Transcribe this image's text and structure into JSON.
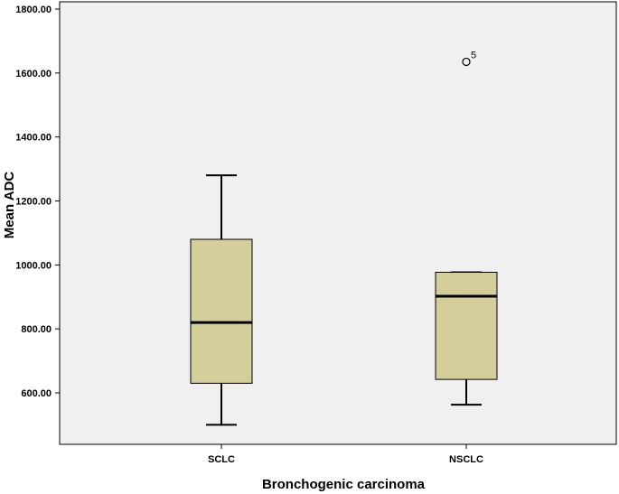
{
  "chart_data": {
    "type": "box",
    "xlabel": "Bronchogenic carcinoma",
    "ylabel": "Mean ADC",
    "ylim": [
      455,
      1830
    ],
    "yticks": [
      "600.00",
      "800.00",
      "1000.00",
      "1200.00",
      "1400.00",
      "1600.00",
      "1800.00"
    ],
    "ytick_values": [
      600,
      800,
      1000,
      1200,
      1400,
      1600,
      1800
    ],
    "categories": [
      "SCLC",
      "NSCLC"
    ],
    "boxes": [
      {
        "category": "SCLC",
        "whisker_low": 500,
        "q1": 630,
        "median": 820,
        "q3": 1080,
        "whisker_high": 1280,
        "outliers": []
      },
      {
        "category": "NSCLC",
        "whisker_low": 563,
        "q1": 642,
        "median": 902,
        "q3": 977,
        "whisker_high": 977,
        "outliers": [
          {
            "value": 1635,
            "label": "5"
          }
        ]
      }
    ],
    "grid": false,
    "colors": {
      "plot_background": "#f0f0f0",
      "box_fill": "#d3ce9a",
      "line": "#000000"
    }
  }
}
